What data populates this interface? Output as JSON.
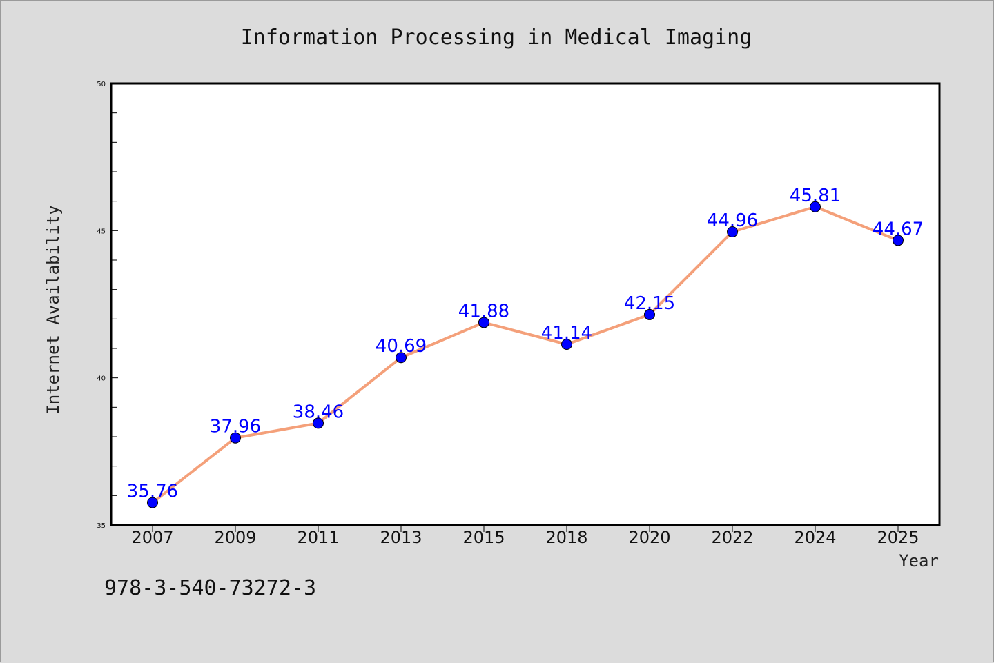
{
  "chart_data": {
    "type": "line",
    "title": "Information Processing in Medical Imaging",
    "xlabel": "Year",
    "ylabel": "Internet Availability",
    "categories": [
      "2007",
      "2009",
      "2011",
      "2013",
      "2015",
      "2018",
      "2020",
      "2022",
      "2024",
      "2025"
    ],
    "series": [
      {
        "values": [
          35.76,
          37.96,
          38.46,
          40.69,
          41.88,
          41.14,
          42.15,
          44.96,
          45.81,
          44.67
        ]
      }
    ],
    "data_labels": [
      "35.76",
      "37.96",
      "38.46",
      "40.69",
      "41.88",
      "41.14",
      "42.15",
      "44.96",
      "45.81",
      "44.67"
    ],
    "ylim": [
      35,
      50
    ],
    "y_ticks": [
      "35",
      "40",
      "45",
      "50"
    ],
    "grid": false,
    "line_color": "#f4a07a",
    "marker_color": "#0000ff",
    "label_color": "#0000ff"
  },
  "footnote": "978-3-540-73272-3"
}
